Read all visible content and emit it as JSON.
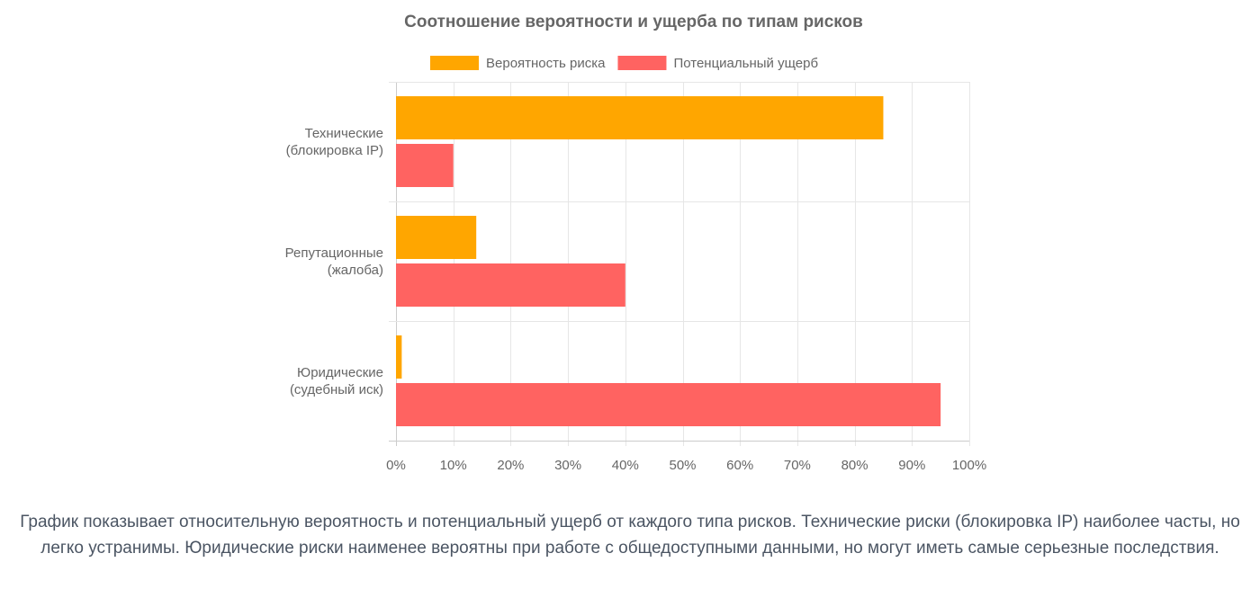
{
  "chart_data": {
    "type": "bar",
    "orientation": "horizontal",
    "title": "Соотношение вероятности и ущерба по типам рисков",
    "categories": [
      [
        "Технические",
        "(блокировка IP)"
      ],
      [
        "Репутационные",
        "(жалоба)"
      ],
      [
        "Юридические",
        "(судебный иск)"
      ]
    ],
    "series": [
      {
        "name": "Вероятность риска",
        "color": "#FFA600",
        "values": [
          85,
          14,
          1
        ]
      },
      {
        "name": "Потенциальный ущерб",
        "color": "#FF6361",
        "values": [
          10,
          40,
          95
        ]
      }
    ],
    "xlim": [
      0,
      100
    ],
    "xticks": [
      0,
      10,
      20,
      30,
      40,
      50,
      60,
      70,
      80,
      90,
      100
    ],
    "tick_suffix": "%",
    "legend_position": "top-center",
    "grid": true
  },
  "caption": "График показывает относительную вероятность и потенциальный ущерб от каждого типа рисков. Технические риски (блокировка IP) наиболее часты, но легко устранимы. Юридические риски наименее вероятны при работе с общедоступными данными, но могут иметь самые серьезные последствия."
}
